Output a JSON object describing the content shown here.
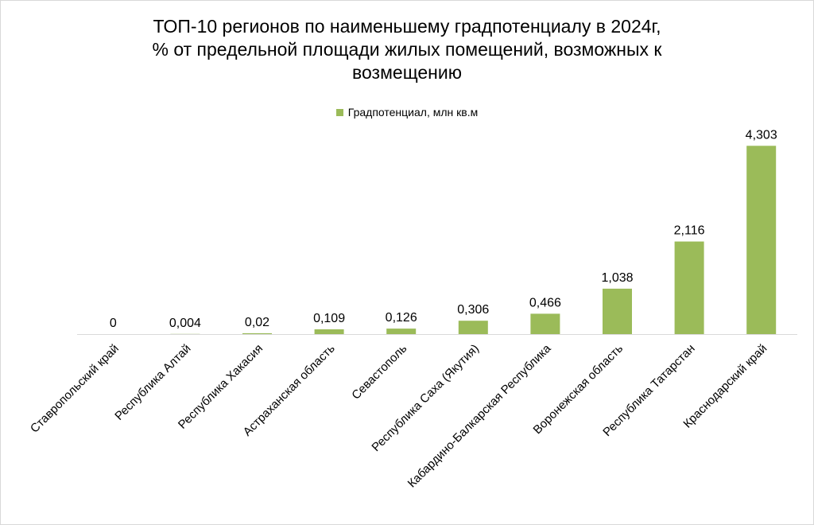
{
  "chart_data": {
    "type": "bar",
    "title_lines": [
      "ТОП-10 регионов по наименьшему градпотенциалу в 2024г,",
      "% от предельной площади жилых помещений, возможных к",
      "возмещению"
    ],
    "categories": [
      "Ставропольский край",
      "Республика Алтай",
      "Республика Хакасия",
      "Астраханская область",
      "Севастополь",
      "Республика Саха (Якутия)",
      "Кабардино-Балкарская Республика",
      "Воронежская область",
      "Республика Татарстан",
      "Краснодарский край"
    ],
    "series": [
      {
        "name": "Градпотенциал, млн кв.м",
        "values": [
          0,
          0.004,
          0.02,
          0.109,
          0.126,
          0.306,
          0.466,
          1.038,
          2.116,
          4.303
        ],
        "labels": [
          "0",
          "0,004",
          "0,02",
          "0,109",
          "0,126",
          "0,306",
          "0,466",
          "1,038",
          "2,116",
          "4,303"
        ],
        "color": "#9bbb59"
      }
    ],
    "ylim": [
      0,
      4.8
    ],
    "grid": false,
    "legend_position": "top",
    "axis_color": "#d9d9d9"
  }
}
